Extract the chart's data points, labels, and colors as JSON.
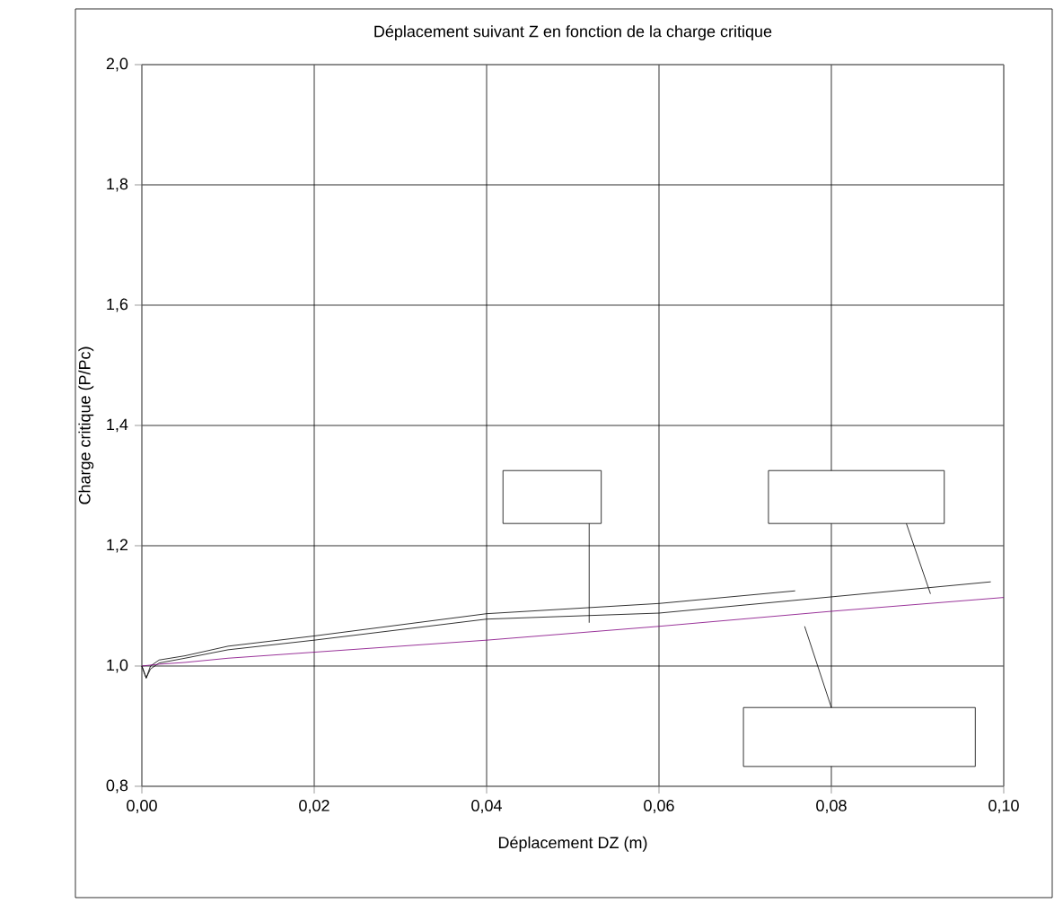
{
  "chart_data": {
    "type": "line",
    "title": "Déplacement suivant Z en fonction de la charge critique",
    "xlabel": "Déplacement DZ (m)",
    "ylabel": "Charge critique (P/Pc)",
    "xlim": [
      0,
      0.1
    ],
    "ylim": [
      0.8,
      2.0
    ],
    "xticks": [
      {
        "value": 0,
        "label": "0,00"
      },
      {
        "value": 0.02,
        "label": "0,02"
      },
      {
        "value": 0.04,
        "label": "0,04"
      },
      {
        "value": 0.06,
        "label": "0,06"
      },
      {
        "value": 0.08,
        "label": "0,08"
      },
      {
        "value": 0.1,
        "label": "0,10"
      }
    ],
    "yticks": [
      {
        "value": 0.8,
        "label": "0,8"
      },
      {
        "value": 1.0,
        "label": "1,0"
      },
      {
        "value": 1.2,
        "label": "1,2"
      },
      {
        "value": 1.4,
        "label": "1,4"
      },
      {
        "value": 1.6,
        "label": "1,6"
      },
      {
        "value": 1.8,
        "label": "1,8"
      },
      {
        "value": 2.0,
        "label": "2,0"
      }
    ],
    "grid": true,
    "marker": "none",
    "line_style": "solid",
    "series": [
      {
        "color": "#000000",
        "x": [
          0,
          0.0005,
          0.001,
          0.002,
          0.005,
          0.01,
          0.02,
          0.04,
          0.06,
          0.0758
        ],
        "values": [
          1.0,
          0.98,
          1.0,
          1.01,
          1.017,
          1.033,
          1.05,
          1.087,
          1.104,
          1.125
        ]
      },
      {
        "color": "#000000",
        "x": [
          0,
          0.0005,
          0.001,
          0.002,
          0.005,
          0.01,
          0.02,
          0.04,
          0.06,
          0.08,
          0.0985
        ],
        "values": [
          1.0,
          0.98,
          0.995,
          1.005,
          1.013,
          1.027,
          1.043,
          1.078,
          1.088,
          1.115,
          1.14
        ]
      },
      {
        "color": "#800080",
        "x": [
          0,
          0.002,
          0.005,
          0.01,
          0.02,
          0.04,
          0.06,
          0.08,
          0.1
        ],
        "values": [
          1.0,
          1.003,
          1.006,
          1.013,
          1.023,
          1.043,
          1.066,
          1.091,
          1.114
        ]
      }
    ]
  }
}
